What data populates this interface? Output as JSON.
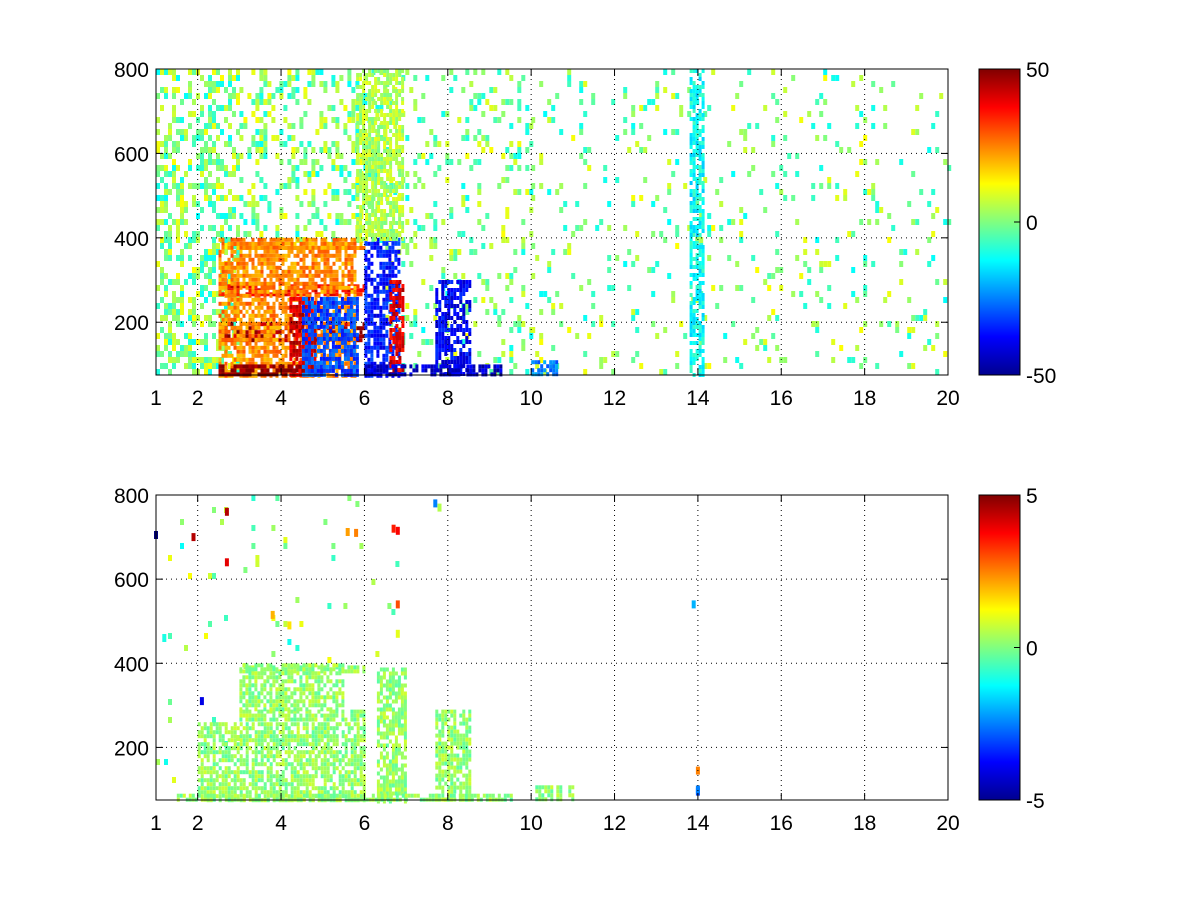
{
  "chart_data": [
    {
      "type": "heatmap",
      "title": "",
      "xlabel": "",
      "ylabel": "",
      "xlim": [
        1,
        20
      ],
      "ylim": [
        75,
        800
      ],
      "x_ticks": [
        1,
        2,
        4,
        6,
        8,
        10,
        12,
        14,
        16,
        18,
        20
      ],
      "y_ticks": [
        200,
        400,
        600,
        800
      ],
      "grid": true,
      "colormap": "jet",
      "colorbar": {
        "min": -50,
        "max": 50,
        "ticks": [
          50,
          0,
          -50
        ]
      },
      "clusters": [
        {
          "x": [
            2.5,
            6.0
          ],
          "y": [
            160,
            200
          ],
          "value": 45
        },
        {
          "x": [
            2.5,
            6.0
          ],
          "y": [
            270,
            290
          ],
          "value": 38
        },
        {
          "x": [
            2.5,
            6.0
          ],
          "y": [
            375,
            390
          ],
          "value": 22
        },
        {
          "x": [
            2.5,
            5.8
          ],
          "y": [
            75,
            400
          ],
          "value": 24
        },
        {
          "x": [
            2.5,
            5.0
          ],
          "y": [
            75,
            100
          ],
          "value": 50
        },
        {
          "x": [
            4.2,
            4.8
          ],
          "y": [
            75,
            260
          ],
          "value": 42
        },
        {
          "x": [
            4.5,
            5.8
          ],
          "y": [
            75,
            260
          ],
          "value": -30
        },
        {
          "x": [
            6.0,
            6.8
          ],
          "y": [
            75,
            400
          ],
          "value": -35
        },
        {
          "x": [
            6.6,
            6.9
          ],
          "y": [
            75,
            300
          ],
          "value": 40
        },
        {
          "x": [
            7.7,
            8.5
          ],
          "y": [
            75,
            300
          ],
          "value": -38
        },
        {
          "x": [
            6.0,
            9.3
          ],
          "y": [
            75,
            100
          ],
          "value": -42
        },
        {
          "x": [
            5.8,
            6.9
          ],
          "y": [
            400,
            800
          ],
          "value": 5
        },
        {
          "x": [
            10.0,
            10.6
          ],
          "y": [
            75,
            110
          ],
          "value": -25
        },
        {
          "x": [
            13.8,
            14.1
          ],
          "y": [
            75,
            800
          ],
          "value": -12
        }
      ],
      "scatter_regions": [
        {
          "x": [
            1,
            3
          ],
          "y": [
            75,
            800
          ],
          "density": 0.45
        },
        {
          "x": [
            3,
            6.5
          ],
          "y": [
            400,
            800
          ],
          "density": 0.3
        },
        {
          "x": [
            6.5,
            10
          ],
          "y": [
            75,
            800
          ],
          "density": 0.18
        },
        {
          "x": [
            10,
            20
          ],
          "y": [
            75,
            800
          ],
          "density": 0.09
        }
      ]
    },
    {
      "type": "heatmap",
      "title": "",
      "xlabel": "",
      "ylabel": "",
      "xlim": [
        1,
        20
      ],
      "ylim": [
        75,
        800
      ],
      "x_ticks": [
        1,
        2,
        4,
        6,
        8,
        10,
        12,
        14,
        16,
        18,
        20
      ],
      "y_ticks": [
        200,
        400,
        600,
        800
      ],
      "grid": true,
      "colormap": "jet",
      "colorbar": {
        "min": -5,
        "max": 5,
        "ticks": [
          5,
          0,
          -5
        ]
      },
      "clusters": [
        {
          "x": [
            2.0,
            6.0
          ],
          "y": [
            75,
            260
          ],
          "value": 0.2
        },
        {
          "x": [
            3.0,
            6.0
          ],
          "y": [
            270,
            290
          ],
          "value": 0.2
        },
        {
          "x": [
            3.0,
            6.0
          ],
          "y": [
            380,
            395
          ],
          "value": 0.2
        },
        {
          "x": [
            3.0,
            5.5
          ],
          "y": [
            290,
            400
          ],
          "value": 0.2
        },
        {
          "x": [
            6.3,
            7.0
          ],
          "y": [
            75,
            390
          ],
          "value": 0.2
        },
        {
          "x": [
            7.7,
            8.5
          ],
          "y": [
            75,
            290
          ],
          "value": 0.2
        },
        {
          "x": [
            1.5,
            9.5
          ],
          "y": [
            75,
            90
          ],
          "value": 0.2
        },
        {
          "x": [
            10.1,
            11.0
          ],
          "y": [
            75,
            110
          ],
          "value": 0.2
        }
      ],
      "points": [
        {
          "x": 6.7,
          "y": 720,
          "value": 3.5
        },
        {
          "x": 6.8,
          "y": 715,
          "value": 3.8
        },
        {
          "x": 5.8,
          "y": 710,
          "value": 2.5
        },
        {
          "x": 5.6,
          "y": 712,
          "value": 2.2
        },
        {
          "x": 4.2,
          "y": 490,
          "value": 1.5
        },
        {
          "x": 3.8,
          "y": 515,
          "value": 2
        },
        {
          "x": 6.8,
          "y": 540,
          "value": 3
        },
        {
          "x": 7.7,
          "y": 780,
          "value": -2.5
        },
        {
          "x": 7.8,
          "y": 770,
          "value": 0.5
        },
        {
          "x": 2.7,
          "y": 760,
          "value": 4.5
        },
        {
          "x": 2.7,
          "y": 640,
          "value": 4
        },
        {
          "x": 1.9,
          "y": 700,
          "value": 4.5
        },
        {
          "x": 1.0,
          "y": 705,
          "value": -5
        },
        {
          "x": 1.2,
          "y": 460,
          "value": -1
        },
        {
          "x": 2.1,
          "y": 310,
          "value": -4
        },
        {
          "x": 14.0,
          "y": 95,
          "value": -3
        },
        {
          "x": 14.0,
          "y": 100,
          "value": -2.5
        },
        {
          "x": 14.0,
          "y": 145,
          "value": 2.5
        },
        {
          "x": 13.9,
          "y": 540,
          "value": -2
        },
        {
          "x": 6.8,
          "y": 470,
          "value": 1
        }
      ],
      "scatter_regions": [
        {
          "x": [
            1,
            3
          ],
          "y": [
            75,
            800
          ],
          "density": 0.03
        },
        {
          "x": [
            3,
            7
          ],
          "y": [
            400,
            800
          ],
          "density": 0.025
        }
      ]
    }
  ]
}
